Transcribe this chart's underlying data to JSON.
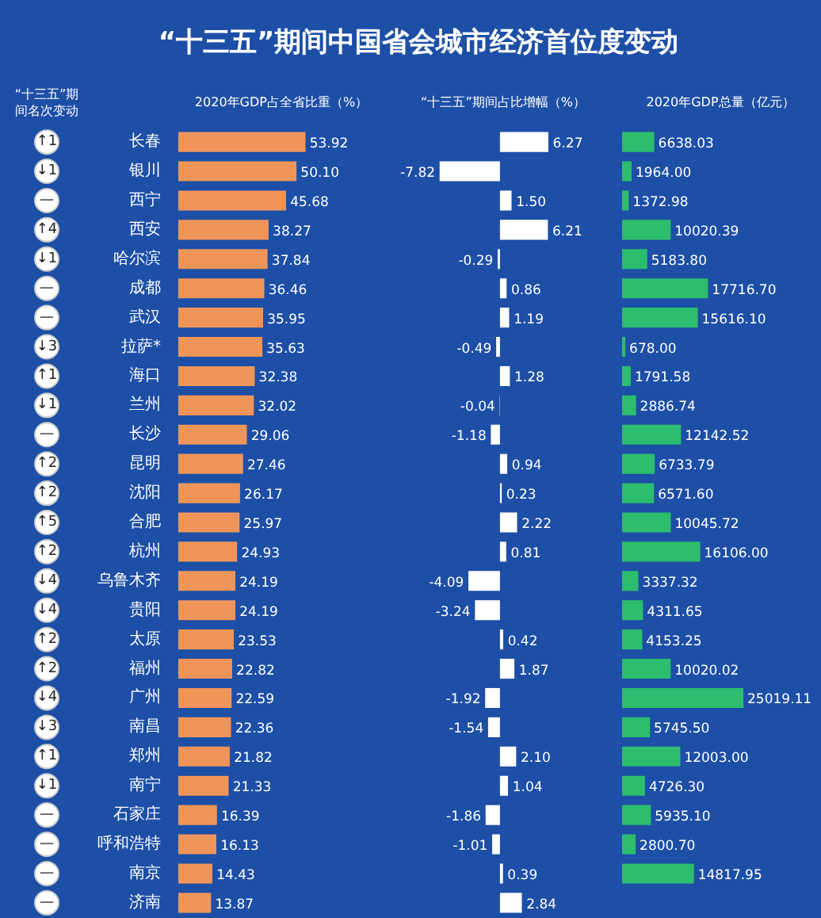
{
  "chart_data": [
    {
      "type": "other",
      "title": "“十三五”期间中国省会城市经济首位度变动",
      "subtitle": "“十三五”期间名次变动",
      "annotations": [
        "↑1",
        "↓1",
        "—",
        "↑4",
        "↓1",
        "—",
        "—",
        "↓3",
        "↑1",
        "↓1",
        "—",
        "↑2",
        "↑2",
        "↑5",
        "↑2",
        "↓4",
        "↓4",
        "↑2",
        "↑2",
        "↓4",
        "↓3",
        "↑1",
        "↓1",
        "—",
        "—",
        "—",
        "—"
      ]
    },
    {
      "type": "bar",
      "orientation": "horizontal",
      "title": "2020年GDP占全省比重（%）",
      "tick_labels": "y",
      "color": "#f0955a",
      "categories": [
        "长春",
        "银川",
        "西宁",
        "西安",
        "哈尔滨",
        "成都",
        "武汉",
        "拉萨*",
        "海口",
        "兰州",
        "长沙",
        "昆明",
        "沈阳",
        "合肥",
        "杭州",
        "乌鲁木齐",
        "贵阳",
        "太原",
        "福州",
        "广州",
        "南昌",
        "郑州",
        "南宁",
        "石家庄",
        "呼和浩特",
        "南京",
        "济南"
      ],
      "values": [
        53.92,
        50.1,
        45.68,
        38.27,
        37.84,
        36.46,
        35.95,
        35.63,
        32.38,
        32.02,
        29.06,
        27.46,
        26.17,
        25.97,
        24.93,
        24.19,
        24.19,
        23.53,
        22.82,
        22.59,
        22.36,
        21.82,
        21.33,
        16.39,
        16.13,
        14.43,
        13.87
      ],
      "value_labels": [
        "53.92",
        "50.10",
        "45.68",
        "38.27",
        "37.84",
        "36.46",
        "35.95",
        "35.63",
        "32.38",
        "32.02",
        "29.06",
        "27.46",
        "26.17",
        "25.97",
        "24.93",
        "24.19",
        "24.19",
        "23.53",
        "22.82",
        "22.59",
        "22.36",
        "21.82",
        "21.33",
        "16.39",
        "16.13",
        "14.43",
        "13.87"
      ]
    },
    {
      "type": "bar",
      "orientation": "horizontal",
      "title": "“十三五”期间占比增幅（%）",
      "color": "#ffffff",
      "values": [
        6.27,
        -7.82,
        1.5,
        6.21,
        -0.29,
        0.86,
        1.19,
        -0.49,
        1.28,
        -0.04,
        -1.18,
        0.94,
        0.23,
        2.22,
        0.81,
        -4.09,
        -3.24,
        0.42,
        1.87,
        -1.92,
        -1.54,
        2.1,
        1.04,
        -1.86,
        -1.01,
        0.39,
        2.84
      ],
      "value_labels": [
        "6.27",
        "-7.82",
        "1.50",
        "6.21",
        "-0.29",
        "0.86",
        "1.19",
        "-0.49",
        "1.28",
        "-0.04",
        "-1.18",
        "0.94",
        "0.23",
        "2.22",
        "0.81",
        "-4.09",
        "-3.24",
        "0.42",
        "1.87",
        "-1.92",
        "-1.54",
        "2.10",
        "1.04",
        "-1.86",
        "-1.01",
        "0.39",
        "2.84"
      ]
    },
    {
      "type": "bar",
      "orientation": "horizontal",
      "title": "2020年GDP总量（亿元）",
      "color": "#2dbd6e",
      "values": [
        6638.03,
        1964.0,
        1372.98,
        10020.39,
        5183.8,
        17716.7,
        15616.1,
        678.0,
        1791.58,
        2886.74,
        12142.52,
        6733.79,
        6571.6,
        10045.72,
        16106.0,
        3337.32,
        4311.65,
        4153.25,
        10020.02,
        25019.11,
        5745.5,
        12003.0,
        4726.3,
        5935.1,
        2800.7,
        14817.95,
        null
      ],
      "value_labels": [
        "6638.03",
        "1964.00",
        "1372.98",
        "10020.39",
        "5183.80",
        "17716.70",
        "15616.10",
        "678.00",
        "1791.58",
        "2886.74",
        "12142.52",
        "6733.79",
        "6571.60",
        "10045.72",
        "16106.00",
        "3337.32",
        "4311.65",
        "4153.25",
        "10020.02",
        "25019.11",
        "5745.50",
        "12003.00",
        "4726.30",
        "5935.10",
        "2800.70",
        "14817.95",
        null
      ]
    }
  ]
}
